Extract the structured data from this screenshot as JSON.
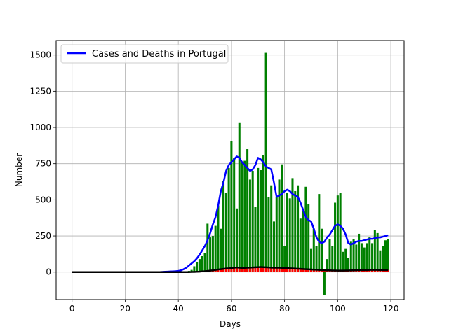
{
  "chart_data": {
    "type": "bar",
    "xlabel": "Days",
    "ylabel": "Number",
    "xlim": [
      -6,
      125
    ],
    "ylim": [
      -190,
      1600
    ],
    "x_ticks": [
      0,
      20,
      40,
      60,
      80,
      100,
      120
    ],
    "y_ticks": [
      0,
      250,
      500,
      750,
      1000,
      1250,
      1500
    ],
    "grid": true,
    "legend": {
      "placement": "top-left",
      "entries": [
        "Cases and Deaths in Portugal"
      ]
    },
    "colors": {
      "cases_bars": "#008000",
      "deaths_bars": "#ff0000",
      "cases_line": "#0000ff",
      "deaths_line": "#000000",
      "grid": "#b0b0b0"
    },
    "x": [
      0,
      1,
      2,
      3,
      4,
      5,
      6,
      7,
      8,
      9,
      10,
      11,
      12,
      13,
      14,
      15,
      16,
      17,
      18,
      19,
      20,
      21,
      22,
      23,
      24,
      25,
      26,
      27,
      28,
      29,
      30,
      31,
      32,
      33,
      34,
      35,
      36,
      37,
      38,
      39,
      40,
      41,
      42,
      43,
      44,
      45,
      46,
      47,
      48,
      49,
      50,
      51,
      52,
      53,
      54,
      55,
      56,
      57,
      58,
      59,
      60,
      61,
      62,
      63,
      64,
      65,
      66,
      67,
      68,
      69,
      70,
      71,
      72,
      73,
      74,
      75,
      76,
      77,
      78,
      79,
      80,
      81,
      82,
      83,
      84,
      85,
      86,
      87,
      88,
      89,
      90,
      91,
      92,
      93,
      94,
      95,
      96,
      97,
      98,
      99,
      100,
      101,
      102,
      103,
      104,
      105,
      106,
      107,
      108,
      109,
      110,
      111,
      112,
      113,
      114,
      115,
      116,
      117,
      118,
      119
    ],
    "series": [
      {
        "kind": "bar",
        "values": [
          0,
          0,
          0,
          0,
          0,
          0,
          0,
          0,
          0,
          0,
          0,
          0,
          0,
          0,
          0,
          0,
          0,
          0,
          0,
          0,
          0,
          0,
          0,
          0,
          0,
          0,
          0,
          0,
          0,
          0,
          0,
          0,
          0,
          0,
          0,
          0,
          0,
          0,
          0,
          0,
          0,
          0,
          2,
          4,
          8,
          15,
          40,
          70,
          90,
          110,
          130,
          335,
          240,
          250,
          320,
          460,
          300,
          630,
          550,
          720,
          905,
          790,
          440,
          1035,
          760,
          770,
          850,
          640,
          700,
          450,
          720,
          705,
          810,
          1515,
          520,
          600,
          350,
          520,
          640,
          745,
          180,
          550,
          510,
          650,
          560,
          600,
          370,
          420,
          590,
          470,
          160,
          300,
          180,
          540,
          300,
          -160,
          90,
          230,
          180,
          480,
          530,
          550,
          140,
          160,
          100,
          210,
          230,
          190,
          265,
          200,
          170,
          200,
          240,
          200,
          290,
          270,
          150,
          180,
          220,
          230
        ]
      },
      {
        "kind": "bar",
        "values": [
          0,
          0,
          0,
          0,
          0,
          0,
          0,
          0,
          0,
          0,
          0,
          0,
          0,
          0,
          0,
          0,
          0,
          0,
          0,
          0,
          0,
          0,
          0,
          0,
          0,
          0,
          0,
          0,
          0,
          0,
          0,
          0,
          0,
          0,
          0,
          0,
          0,
          0,
          0,
          0,
          0,
          0,
          0,
          0,
          0,
          1,
          1,
          2,
          3,
          5,
          6,
          8,
          10,
          12,
          15,
          18,
          20,
          22,
          25,
          26,
          28,
          30,
          32,
          30,
          28,
          29,
          30,
          31,
          32,
          33,
          34,
          35,
          34,
          33,
          32,
          31,
          30,
          31,
          30,
          29,
          28,
          27,
          26,
          25,
          24,
          23,
          22,
          21,
          20,
          19,
          18,
          17,
          16,
          15,
          14,
          13,
          12,
          12,
          11,
          11,
          10,
          10,
          10,
          11,
          11,
          12,
          12,
          13,
          13,
          14,
          14,
          14,
          15,
          15,
          15,
          15,
          14,
          14,
          14,
          14
        ]
      },
      {
        "kind": "line",
        "values": [
          0,
          0,
          0,
          0,
          0,
          0,
          0,
          0,
          0,
          0,
          0,
          0,
          0,
          0,
          0,
          0,
          0,
          0,
          0,
          0,
          0,
          0,
          0,
          0,
          0,
          0,
          0,
          0,
          0,
          0,
          0,
          0,
          0,
          0,
          1,
          2,
          3,
          4,
          5,
          6,
          8,
          12,
          20,
          30,
          45,
          60,
          75,
          95,
          120,
          150,
          180,
          220,
          270,
          330,
          380,
          460,
          560,
          620,
          700,
          740,
          760,
          780,
          800,
          790,
          760,
          740,
          720,
          700,
          710,
          740,
          790,
          780,
          760,
          730,
          720,
          710,
          620,
          520,
          530,
          540,
          560,
          570,
          560,
          540,
          530,
          520,
          480,
          430,
          380,
          360,
          350,
          300,
          240,
          210,
          200,
          210,
          240,
          260,
          290,
          320,
          330,
          320,
          300,
          260,
          200,
          190,
          200,
          210,
          215,
          215,
          220,
          225,
          230,
          230,
          235,
          240,
          240,
          245,
          250,
          255
        ]
      },
      {
        "kind": "line",
        "values": [
          0,
          0,
          0,
          0,
          0,
          0,
          0,
          0,
          0,
          0,
          0,
          0,
          0,
          0,
          0,
          0,
          0,
          0,
          0,
          0,
          0,
          0,
          0,
          0,
          0,
          0,
          0,
          0,
          0,
          0,
          0,
          0,
          0,
          0,
          0,
          0,
          0,
          0,
          0,
          0,
          0,
          0,
          0,
          0,
          0,
          1,
          1,
          2,
          3,
          5,
          6,
          8,
          10,
          12,
          15,
          18,
          20,
          22,
          25,
          26,
          28,
          30,
          32,
          30,
          28,
          29,
          30,
          31,
          32,
          33,
          34,
          35,
          34,
          33,
          32,
          31,
          30,
          31,
          30,
          29,
          28,
          27,
          26,
          25,
          24,
          23,
          22,
          21,
          20,
          19,
          18,
          17,
          16,
          15,
          14,
          13,
          12,
          12,
          11,
          11,
          10,
          10,
          10,
          11,
          11,
          12,
          12,
          13,
          13,
          14,
          14,
          14,
          15,
          15,
          15,
          15,
          14,
          14,
          14,
          14
        ]
      }
    ],
    "legend_label": "Cases and Deaths in Portugal"
  }
}
